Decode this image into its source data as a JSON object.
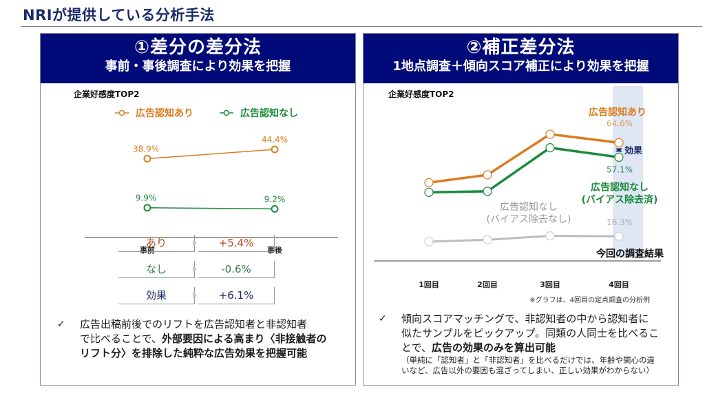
{
  "page": {
    "title": "NRIが提供している分析手法"
  },
  "colors": {
    "header_bg": "#000a78",
    "aware": "#d97c1e",
    "unaware": "#1a8a3c",
    "unaware_raw": "#bdbdbd",
    "effect": "#1b2a6b",
    "highlight": "#dfe6f4"
  },
  "left": {
    "title": "①差分の差分法",
    "subtitle": "事前・事後調査により効果を把握",
    "summary": [
      {
        "label": "あり",
        "value": "+5.4%",
        "color": "#c0461a"
      },
      {
        "label": "なし",
        "value": "-0.6%",
        "color": "#3c7a4c"
      },
      {
        "label": "効果",
        "value": "+6.1%",
        "color": "#1b2a6b"
      }
    ],
    "bullet": {
      "check": "✓",
      "line1": "広告出稿前後でのリフトを広告認知者と非認知者",
      "line2_plain": "で比べることで、",
      "line2_bold": "外部要因による高まり〈非接触者の",
      "line3_bold": "リフト分〉",
      "line3_plain": "を排除した純粋な広告効果を把握可能"
    }
  },
  "right": {
    "title": "②補正差分法",
    "subtitle": "1地点調査＋傾向スコア補正により効果を把握",
    "bullet": {
      "check": "✓",
      "line1": "傾向スコアマッチングで、非認知者の中から認知者に",
      "line2": "似たサンプルをピックアップ。同類の人同士を比べるこ",
      "line3_plain": "とで、",
      "line3_bold": "広告の効果のみを算出可能",
      "note1": "（単純に「認知者」と「非認知者」を比べるだけでは、年齢や関心の違",
      "note2": "いなど、広告以外の要因も混ざってしまい、正しい効果がわからない）"
    }
  },
  "chart_data": [
    {
      "type": "line",
      "title": "企業好感度TOP2",
      "categories": [
        "事前",
        "事後"
      ],
      "series": [
        {
          "name": "広告認知あり",
          "values": [
            38.9,
            44.4
          ],
          "labels": [
            "38.9%",
            "44.4%"
          ],
          "color": "#d97c1e"
        },
        {
          "name": "広告認知なし",
          "values": [
            9.9,
            9.2
          ],
          "labels": [
            "9.9%",
            "9.2%"
          ],
          "color": "#1a8a3c"
        }
      ],
      "legend": "top",
      "ylim": [
        0,
        55
      ],
      "xlabel": "",
      "ylabel": "",
      "grid": false
    },
    {
      "type": "line",
      "title": "企業好感度TOP2",
      "categories": [
        "1回目",
        "2回目",
        "3回目",
        "4回目"
      ],
      "series": [
        {
          "name": "広告認知あり",
          "values": [
            44,
            48,
            69,
            64.6
          ],
          "labels": [
            null,
            null,
            null,
            "64.6%"
          ],
          "color": "#d97c1e"
        },
        {
          "name": "広告認知なし(バイアス除去済)",
          "values": [
            39,
            39.5,
            62,
            57.1
          ],
          "labels": [
            null,
            null,
            null,
            "57.1%"
          ],
          "color": "#1a8a3c"
        },
        {
          "name": "広告認知なし(バイアス除去なし)",
          "values": [
            13.5,
            14.5,
            16.5,
            16.3
          ],
          "labels": [
            null,
            null,
            null,
            "16.3%"
          ],
          "color": "#bdbdbd"
        }
      ],
      "annotations": {
        "aware_label": "広告認知あり",
        "unaware_label_1": "広告認知なし",
        "unaware_label_2": "(バイアス除去済)",
        "raw_label_1": "広告認知なし",
        "raw_label_2": "(バイアス除去なし)",
        "effect_label": "効果",
        "highlight_label": "今回の調査結果",
        "footnote": "※グラフは、4回目の定点調査の分析例"
      },
      "highlight_category": "4回目",
      "ylim": [
        0,
        80
      ],
      "xlabel": "",
      "ylabel": "",
      "grid": false
    }
  ]
}
